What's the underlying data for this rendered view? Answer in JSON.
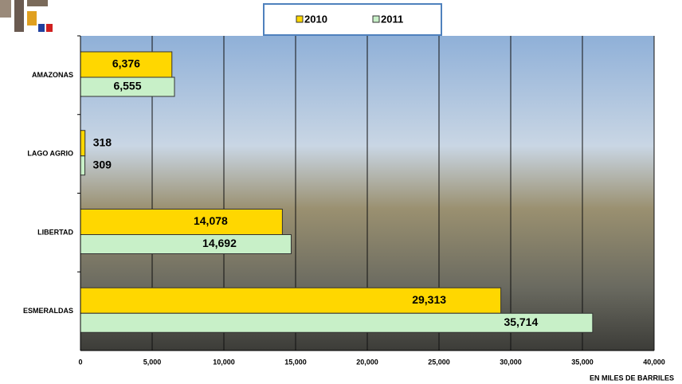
{
  "chart_data": {
    "type": "bar",
    "orientation": "horizontal",
    "categories": [
      "AMAZONAS",
      "LAGO AGRIO",
      "LIBERTAD",
      "ESMERALDAS"
    ],
    "series": [
      {
        "name": "2010",
        "color": "#ffd700",
        "values": [
          6376,
          318,
          14078,
          29313
        ],
        "value_labels": [
          "6,376",
          "318",
          "14,078",
          "29,313"
        ]
      },
      {
        "name": "2011",
        "color": "#c8f0c8",
        "values": [
          6555,
          309,
          14692,
          35714
        ],
        "value_labels": [
          "6,555",
          "309",
          "14,692",
          "35,714"
        ]
      }
    ],
    "x_label": "EN MILES DE BARRILES",
    "xlim": [
      0,
      40000
    ],
    "xticks": [
      0,
      {
        "value": 5000,
        "label": "5,000"
      },
      {
        "value": 10000,
        "label": "10,000"
      },
      {
        "value": 15000,
        "label": "15,000"
      },
      {
        "value": 20000,
        "label": "20,000"
      },
      {
        "value": 25000,
        "label": "25,000"
      },
      {
        "value": 30000,
        "label": "30,000"
      },
      {
        "value": 35000,
        "label": "35,000"
      },
      {
        "value": 40000,
        "label": "40,000"
      }
    ],
    "grid": true,
    "legend": "top"
  }
}
